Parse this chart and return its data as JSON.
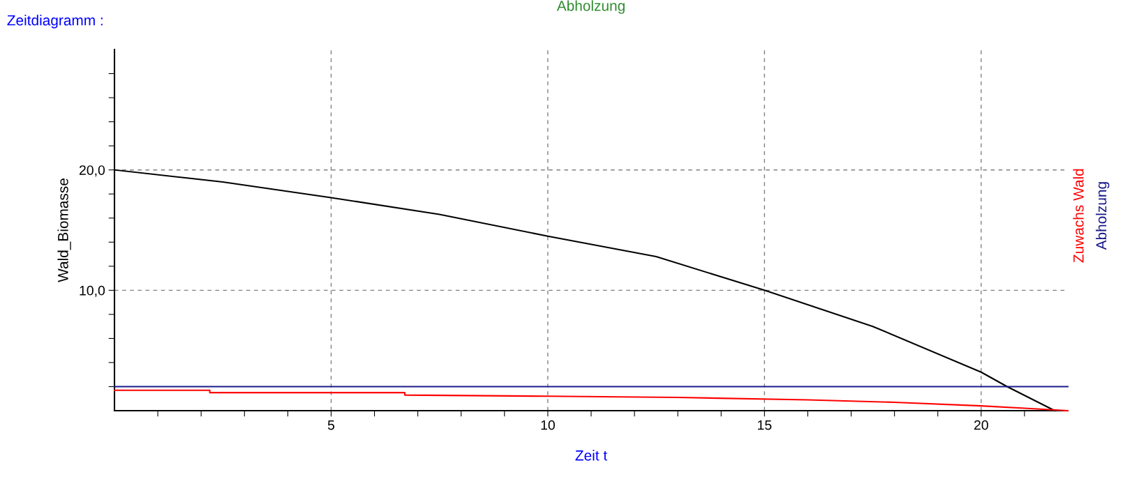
{
  "chart_data": {
    "type": "line",
    "title": "Abholzung",
    "xlabel": "Zeit t",
    "ylabel": "Wald_Biomasse",
    "annotations": [
      "Zeitdiagramm :"
    ],
    "xlim": [
      0,
      22
    ],
    "ylim": [
      0,
      30
    ],
    "xticks": [
      {
        "value": 1,
        "label": null
      },
      {
        "value": 2,
        "label": null
      },
      {
        "value": 3,
        "label": null
      },
      {
        "value": 4,
        "label": null
      },
      5,
      {
        "value": 6,
        "label": null
      },
      {
        "value": 7,
        "label": null
      },
      {
        "value": 8,
        "label": null
      },
      {
        "value": 9,
        "label": null
      },
      10,
      {
        "value": 11,
        "label": null
      },
      {
        "value": 12,
        "label": null
      },
      {
        "value": 13,
        "label": null
      },
      {
        "value": 14,
        "label": null
      },
      15,
      {
        "value": 16,
        "label": null
      },
      {
        "value": 17,
        "label": null
      },
      {
        "value": 18,
        "label": null
      },
      {
        "value": 19,
        "label": null
      },
      20,
      {
        "value": 21,
        "label": null
      }
    ],
    "yticks": [
      {
        "value": 2,
        "label": null
      },
      {
        "value": 4,
        "label": null
      },
      {
        "value": 6,
        "label": null
      },
      {
        "value": 8,
        "label": null
      },
      {
        "value": 10,
        "label": "10,0"
      },
      {
        "value": 12,
        "label": null
      },
      {
        "value": 14,
        "label": null
      },
      {
        "value": 16,
        "label": null
      },
      {
        "value": 18,
        "label": null
      },
      {
        "value": 20,
        "label": "20,0"
      },
      {
        "value": 22,
        "label": null
      },
      {
        "value": 24,
        "label": null
      },
      {
        "value": 26,
        "label": null
      },
      {
        "value": 28,
        "label": null
      }
    ],
    "grid": true,
    "line_style": "solid",
    "legend": false,
    "series": [
      {
        "color": "#000000",
        "x": [
          0,
          2.5,
          5,
          7.5,
          10,
          12.5,
          15,
          17.5,
          20,
          20.6,
          21.7
        ],
        "values": [
          20,
          19.0,
          17.7,
          16.3,
          14.5,
          12.8,
          10.0,
          7.0,
          3.2,
          2.0,
          0
        ]
      },
      {
        "name": "Zuwachs Wald",
        "color": "#ff0000",
        "x": [
          0,
          2.2,
          2.2,
          6.7,
          6.7,
          10,
          13,
          16,
          18,
          20,
          21,
          22
        ],
        "values": [
          1.7,
          1.7,
          1.5,
          1.5,
          1.3,
          1.2,
          1.1,
          0.9,
          0.7,
          0.4,
          0.2,
          0.0
        ]
      },
      {
        "name": "Abholzung",
        "color": "#1a1a8c",
        "x": [
          0,
          22
        ],
        "values": [
          2,
          2
        ]
      }
    ]
  }
}
